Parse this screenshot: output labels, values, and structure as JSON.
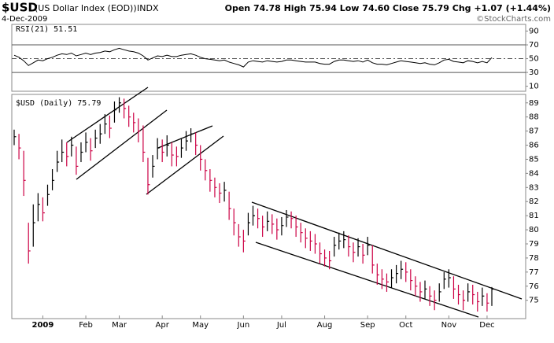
{
  "header": {
    "symbol": "$USD",
    "name": "(US Dollar Index (EOD))",
    "exchange": "INDX",
    "date": "4-Dec-2009",
    "quote": "Open 74.78  High 75.94  Low 74.60  Close 75.79  Chg +1.07 (+1.44%)",
    "credit": "©StockCharts.com"
  },
  "chart_data": [
    {
      "type": "line",
      "series_name": "RSI(21) 51.51",
      "color": "#000000",
      "values": [
        55,
        52,
        47,
        40,
        44,
        48,
        47,
        50,
        52,
        55,
        57,
        56,
        58,
        54,
        56,
        58,
        56,
        58,
        59,
        61,
        60,
        63,
        65,
        63,
        61,
        60,
        58,
        54,
        48,
        51,
        54,
        53,
        55,
        53,
        53,
        55,
        56,
        57,
        55,
        52,
        50,
        49,
        48,
        47,
        48,
        45,
        43,
        41,
        38,
        45,
        47,
        46,
        45,
        47,
        46,
        45,
        46,
        48,
        48,
        47,
        46,
        45,
        45,
        45,
        43,
        42,
        42,
        46,
        48,
        48,
        47,
        46,
        47,
        45,
        48,
        44,
        42,
        42,
        41,
        43,
        45,
        47,
        46,
        45,
        44,
        43,
        44,
        42,
        41,
        44,
        48,
        49,
        46,
        45,
        44,
        47,
        46,
        44,
        46,
        44,
        51.51
      ],
      "ylim": [
        2.7,
        99.7
      ],
      "yticks": [
        10,
        30,
        50,
        70,
        90
      ],
      "reference_lines": [
        30,
        50,
        70
      ]
    },
    {
      "type": "hlc",
      "series_name": "$USD (Daily) 75.79",
      "up_color": "#000000",
      "down_color": "#cc0044",
      "categories": [
        null,
        null,
        null,
        null,
        null,
        null,
        "2009",
        null,
        null,
        null,
        null,
        null,
        null,
        null,
        null,
        "Feb",
        null,
        null,
        null,
        null,
        null,
        null,
        "Mar",
        null,
        null,
        null,
        null,
        null,
        null,
        null,
        null,
        "Apr",
        null,
        null,
        null,
        null,
        null,
        null,
        null,
        "May",
        null,
        null,
        null,
        null,
        null,
        null,
        null,
        null,
        "Jun",
        null,
        null,
        null,
        null,
        null,
        null,
        null,
        "Jul",
        null,
        null,
        null,
        null,
        null,
        null,
        null,
        null,
        "Aug",
        null,
        null,
        null,
        null,
        null,
        null,
        null,
        null,
        "Sep",
        null,
        null,
        null,
        null,
        null,
        null,
        null,
        "Oct",
        null,
        null,
        null,
        null,
        null,
        null,
        null,
        null,
        "Nov",
        null,
        null,
        null,
        null,
        null,
        null,
        null,
        "Dec",
        null
      ],
      "closes": [
        86.6,
        85.8,
        83.5,
        78.5,
        80.5,
        81.8,
        81.2,
        82.5,
        83.5,
        84.8,
        85.5,
        85.2,
        86.0,
        84.5,
        85.5,
        86.2,
        85.6,
        86.5,
        86.8,
        87.5,
        87.2,
        88.5,
        89.0,
        88.6,
        88.0,
        87.6,
        87.0,
        85.5,
        83.2,
        84.5,
        85.8,
        85.5,
        86.0,
        85.3,
        85.2,
        85.8,
        86.3,
        86.8,
        86.0,
        85.0,
        84.2,
        83.5,
        83.0,
        82.6,
        82.8,
        81.5,
        80.5,
        79.5,
        79.2,
        80.5,
        81.0,
        80.8,
        80.2,
        80.6,
        80.4,
        80.0,
        80.3,
        80.9,
        80.8,
        80.2,
        79.8,
        79.4,
        79.2,
        79.0,
        78.3,
        78.0,
        77.8,
        78.9,
        79.2,
        79.3,
        78.8,
        78.4,
        78.8,
        78.2,
        78.9,
        77.5,
        76.8,
        76.5,
        76.3,
        76.6,
        76.9,
        77.2,
        77.0,
        76.4,
        76.0,
        75.6,
        75.8,
        75.3,
        75.0,
        75.6,
        76.5,
        76.6,
        75.8,
        75.4,
        75.0,
        75.6,
        75.4,
        74.9,
        75.3,
        74.8,
        75.79
      ],
      "highs": [
        87.1,
        86.8,
        85.6,
        80.5,
        81.8,
        82.6,
        82.3,
        83.2,
        84.3,
        85.6,
        86.4,
        86.2,
        86.6,
        85.9,
        86.2,
        86.9,
        86.5,
        87.1,
        87.5,
        88.2,
        88.1,
        89.1,
        89.4,
        89.3,
        88.8,
        88.3,
        87.9,
        87.4,
        85.1,
        85.3,
        86.5,
        86.4,
        86.7,
        86.2,
        85.9,
        86.5,
        87.0,
        87.2,
        86.9,
        86.0,
        85.0,
        84.3,
        83.7,
        83.3,
        83.4,
        82.7,
        81.5,
        80.4,
        80.0,
        81.2,
        81.7,
        81.5,
        81.0,
        81.3,
        81.1,
        80.8,
        80.9,
        81.4,
        81.3,
        81.0,
        80.5,
        80.1,
        79.9,
        79.7,
        79.1,
        78.6,
        78.5,
        79.5,
        79.8,
        79.9,
        79.6,
        79.1,
        79.4,
        79.0,
        79.5,
        78.9,
        77.6,
        77.2,
        76.9,
        77.2,
        77.5,
        77.8,
        77.7,
        77.2,
        76.7,
        76.3,
        76.4,
        76.0,
        75.7,
        76.2,
        77.0,
        77.2,
        76.7,
        76.1,
        75.7,
        76.2,
        76.1,
        75.6,
        75.9,
        75.5,
        75.94
      ],
      "lows": [
        86.0,
        85.0,
        82.4,
        77.6,
        78.8,
        80.6,
        80.6,
        81.7,
        82.8,
        84.1,
        84.8,
        84.5,
        85.2,
        83.9,
        84.8,
        85.5,
        84.9,
        85.8,
        86.1,
        86.8,
        86.5,
        87.6,
        88.3,
        87.9,
        87.3,
        86.9,
        86.2,
        84.8,
        82.5,
        83.7,
        85.0,
        84.8,
        85.2,
        84.5,
        84.5,
        85.1,
        85.6,
        86.2,
        85.3,
        84.2,
        83.5,
        82.7,
        82.3,
        81.9,
        82.0,
        80.7,
        79.6,
        78.8,
        78.4,
        79.6,
        80.3,
        80.1,
        79.5,
        79.9,
        79.7,
        79.3,
        79.6,
        80.2,
        80.1,
        79.5,
        79.1,
        78.7,
        78.5,
        78.3,
        77.6,
        77.4,
        77.2,
        78.1,
        78.6,
        78.7,
        78.1,
        77.7,
        78.1,
        77.6,
        78.2,
        76.9,
        76.1,
        75.8,
        75.6,
        75.9,
        76.2,
        76.5,
        76.3,
        75.7,
        75.3,
        74.9,
        75.1,
        74.6,
        74.3,
        74.9,
        75.8,
        75.9,
        75.1,
        74.7,
        74.3,
        74.9,
        74.7,
        74.2,
        74.6,
        74.2,
        74.6
      ],
      "ylim": [
        73.7,
        89.6
      ],
      "yticks": [
        75,
        76,
        77,
        78,
        79,
        80,
        81,
        82,
        83,
        84,
        85,
        86,
        87,
        88,
        89
      ],
      "grid": false
    }
  ]
}
